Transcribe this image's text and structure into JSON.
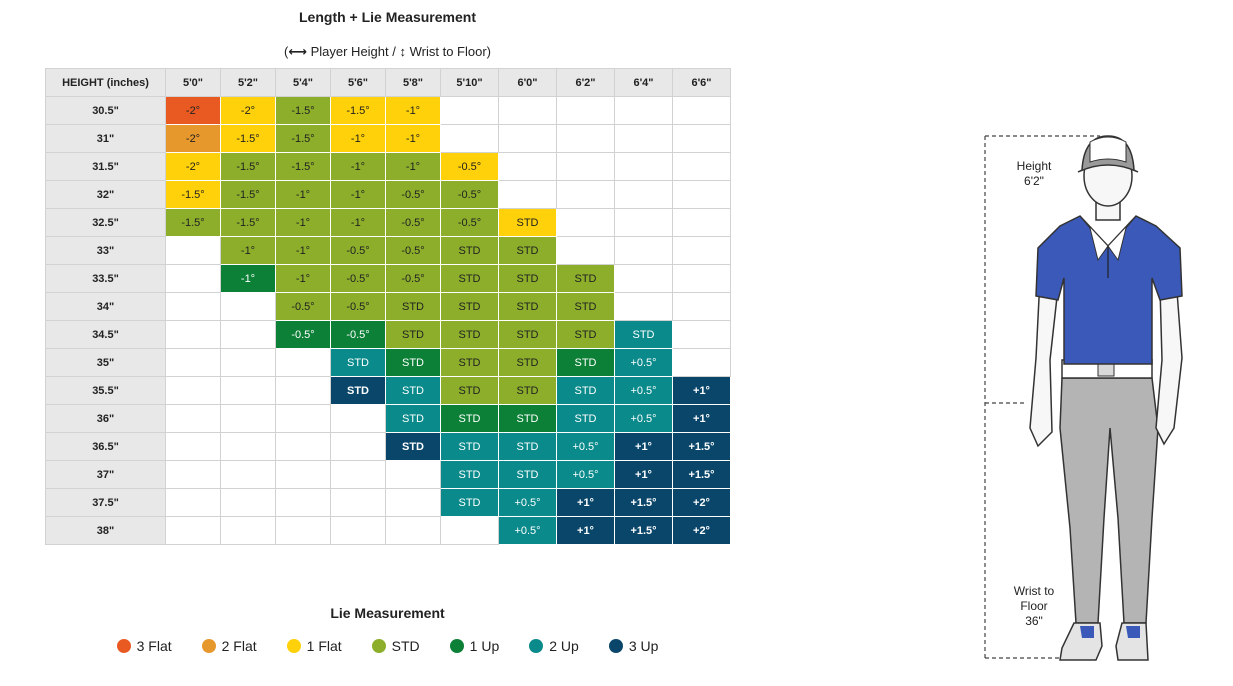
{
  "title": "Length + Lie Measurement",
  "subtitle": {
    "open": "(",
    "height_glyph": "⟷",
    "height_text": "Player Height /",
    "wrist_glyph": "↕",
    "wrist_text": "Wrist to Floor)"
  },
  "colors": {
    "3 Flat": "#e95a23",
    "2 Flat": "#e7982c",
    "1 Flat": "#fed10a",
    "STD": "#8cae2b",
    "1 Up": "#0d8037",
    "2 Up": "#0b8a8b",
    "3 Up": "#0a466a"
  },
  "chart_data": {
    "type": "table",
    "corner_header": "HEIGHT (inches)",
    "columns": [
      "5'0\"",
      "5'2\"",
      "5'4\"",
      "5'6\"",
      "5'8\"",
      "5'10\"",
      "6'0\"",
      "6'2\"",
      "6'4\"",
      "6'6\""
    ],
    "rows": [
      {
        "label": "30.5\"",
        "cells": [
          {
            "v": "-2°",
            "c": "3 Flat"
          },
          {
            "v": "-2°",
            "c": "1 Flat"
          },
          {
            "v": "-1.5°",
            "c": "STD"
          },
          {
            "v": "-1.5°",
            "c": "1 Flat"
          },
          {
            "v": "-1°",
            "c": "1 Flat"
          },
          null,
          null,
          null,
          null,
          null
        ]
      },
      {
        "label": "31\"",
        "cells": [
          {
            "v": "-2°",
            "c": "2 Flat"
          },
          {
            "v": "-1.5°",
            "c": "1 Flat"
          },
          {
            "v": "-1.5°",
            "c": "STD"
          },
          {
            "v": "-1°",
            "c": "1 Flat"
          },
          {
            "v": "-1°",
            "c": "1 Flat"
          },
          null,
          null,
          null,
          null,
          null
        ]
      },
      {
        "label": "31.5\"",
        "cells": [
          {
            "v": "-2°",
            "c": "1 Flat"
          },
          {
            "v": "-1.5°",
            "c": "STD"
          },
          {
            "v": "-1.5°",
            "c": "STD"
          },
          {
            "v": "-1°",
            "c": "STD"
          },
          {
            "v": "-1°",
            "c": "STD"
          },
          {
            "v": "-0.5°",
            "c": "1 Flat"
          },
          null,
          null,
          null,
          null
        ]
      },
      {
        "label": "32\"",
        "cells": [
          {
            "v": "-1.5°",
            "c": "1 Flat"
          },
          {
            "v": "-1.5°",
            "c": "STD"
          },
          {
            "v": "-1°",
            "c": "STD"
          },
          {
            "v": "-1°",
            "c": "STD"
          },
          {
            "v": "-0.5°",
            "c": "STD"
          },
          {
            "v": "-0.5°",
            "c": "STD"
          },
          null,
          null,
          null,
          null
        ]
      },
      {
        "label": "32.5\"",
        "cells": [
          {
            "v": "-1.5°",
            "c": "STD"
          },
          {
            "v": "-1.5°",
            "c": "STD"
          },
          {
            "v": "-1°",
            "c": "STD"
          },
          {
            "v": "-1°",
            "c": "STD"
          },
          {
            "v": "-0.5°",
            "c": "STD"
          },
          {
            "v": "-0.5°",
            "c": "STD"
          },
          {
            "v": "STD",
            "c": "1 Flat"
          },
          null,
          null,
          null
        ]
      },
      {
        "label": "33\"",
        "cells": [
          null,
          {
            "v": "-1°",
            "c": "STD"
          },
          {
            "v": "-1°",
            "c": "STD"
          },
          {
            "v": "-0.5°",
            "c": "STD"
          },
          {
            "v": "-0.5°",
            "c": "STD"
          },
          {
            "v": "STD",
            "c": "STD"
          },
          {
            "v": "STD",
            "c": "STD"
          },
          null,
          null,
          null
        ]
      },
      {
        "label": "33.5\"",
        "cells": [
          null,
          {
            "v": "-1°",
            "c": "1 Up"
          },
          {
            "v": "-1°",
            "c": "STD"
          },
          {
            "v": "-0.5°",
            "c": "STD"
          },
          {
            "v": "-0.5°",
            "c": "STD"
          },
          {
            "v": "STD",
            "c": "STD"
          },
          {
            "v": "STD",
            "c": "STD"
          },
          {
            "v": "STD",
            "c": "STD"
          },
          null,
          null
        ]
      },
      {
        "label": "34\"",
        "cells": [
          null,
          null,
          {
            "v": "-0.5°",
            "c": "STD"
          },
          {
            "v": "-0.5°",
            "c": "STD"
          },
          {
            "v": "STD",
            "c": "STD"
          },
          {
            "v": "STD",
            "c": "STD"
          },
          {
            "v": "STD",
            "c": "STD"
          },
          {
            "v": "STD",
            "c": "STD"
          },
          null,
          null
        ]
      },
      {
        "label": "34.5\"",
        "cells": [
          null,
          null,
          {
            "v": "-0.5°",
            "c": "1 Up"
          },
          {
            "v": "-0.5°",
            "c": "1 Up"
          },
          {
            "v": "STD",
            "c": "STD"
          },
          {
            "v": "STD",
            "c": "STD"
          },
          {
            "v": "STD",
            "c": "STD"
          },
          {
            "v": "STD",
            "c": "STD"
          },
          {
            "v": "STD",
            "c": "2 Up"
          },
          null
        ]
      },
      {
        "label": "35\"",
        "cells": [
          null,
          null,
          null,
          {
            "v": "STD",
            "c": "2 Up"
          },
          {
            "v": "STD",
            "c": "1 Up"
          },
          {
            "v": "STD",
            "c": "STD"
          },
          {
            "v": "STD",
            "c": "STD"
          },
          {
            "v": "STD",
            "c": "1 Up"
          },
          {
            "v": "+0.5°",
            "c": "2 Up"
          },
          null
        ]
      },
      {
        "label": "35.5\"",
        "cells": [
          null,
          null,
          null,
          {
            "v": "STD",
            "c": "3 Up"
          },
          {
            "v": "STD",
            "c": "2 Up"
          },
          {
            "v": "STD",
            "c": "STD"
          },
          {
            "v": "STD",
            "c": "STD"
          },
          {
            "v": "STD",
            "c": "2 Up"
          },
          {
            "v": "+0.5°",
            "c": "2 Up"
          },
          {
            "v": "+1°",
            "c": "3 Up"
          }
        ]
      },
      {
        "label": "36\"",
        "cells": [
          null,
          null,
          null,
          null,
          {
            "v": "STD",
            "c": "2 Up"
          },
          {
            "v": "STD",
            "c": "1 Up"
          },
          {
            "v": "STD",
            "c": "1 Up"
          },
          {
            "v": "STD",
            "c": "2 Up"
          },
          {
            "v": "+0.5°",
            "c": "2 Up"
          },
          {
            "v": "+1°",
            "c": "3 Up"
          }
        ]
      },
      {
        "label": "36.5\"",
        "cells": [
          null,
          null,
          null,
          null,
          {
            "v": "STD",
            "c": "3 Up"
          },
          {
            "v": "STD",
            "c": "2 Up"
          },
          {
            "v": "STD",
            "c": "2 Up"
          },
          {
            "v": "+0.5°",
            "c": "2 Up"
          },
          {
            "v": "+1°",
            "c": "3 Up"
          },
          {
            "v": "+1.5°",
            "c": "3 Up"
          }
        ]
      },
      {
        "label": "37\"",
        "cells": [
          null,
          null,
          null,
          null,
          null,
          {
            "v": "STD",
            "c": "2 Up"
          },
          {
            "v": "STD",
            "c": "2 Up"
          },
          {
            "v": "+0.5°",
            "c": "2 Up"
          },
          {
            "v": "+1°",
            "c": "3 Up"
          },
          {
            "v": "+1.5°",
            "c": "3 Up"
          }
        ]
      },
      {
        "label": "37.5\"",
        "cells": [
          null,
          null,
          null,
          null,
          null,
          {
            "v": "STD",
            "c": "2 Up"
          },
          {
            "v": "+0.5°",
            "c": "2 Up"
          },
          {
            "v": "+1°",
            "c": "3 Up"
          },
          {
            "v": "+1.5°",
            "c": "3 Up"
          },
          {
            "v": "+2°",
            "c": "3 Up"
          }
        ]
      },
      {
        "label": "38\"",
        "cells": [
          null,
          null,
          null,
          null,
          null,
          null,
          {
            "v": "+0.5°",
            "c": "2 Up"
          },
          {
            "v": "+1°",
            "c": "3 Up"
          },
          {
            "v": "+1.5°",
            "c": "3 Up"
          },
          {
            "v": "+2°",
            "c": "3 Up"
          }
        ]
      }
    ]
  },
  "legend": {
    "title": "Lie Measurement",
    "items": [
      "3 Flat",
      "2 Flat",
      "1 Flat",
      "STD",
      "1 Up",
      "2 Up",
      "3 Up"
    ]
  },
  "figure": {
    "height_label": "Height",
    "height_value": "6'2\"",
    "wrist_label_1": "Wrist to",
    "wrist_label_2": "Floor",
    "wrist_value": "36\""
  }
}
